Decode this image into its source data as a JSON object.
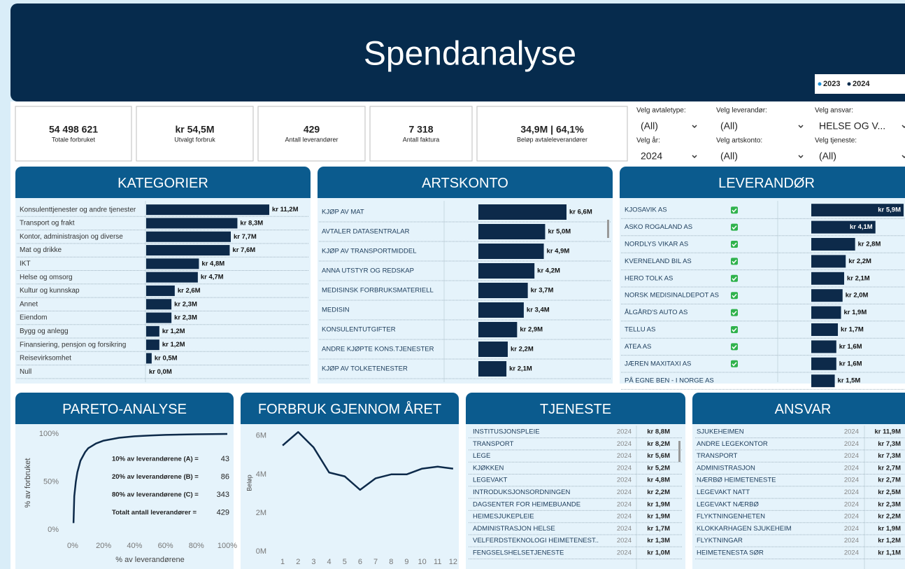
{
  "header": {
    "title": "Spendanalyse",
    "legend": [
      {
        "name": "2023",
        "color": "#1e90d6"
      },
      {
        "name": "2024",
        "color": "#062b4d"
      }
    ]
  },
  "kpis": [
    {
      "value": "54 498 621",
      "label": "Totale forbruket"
    },
    {
      "value": "kr 54,5M",
      "label": "Utvalgt forbruk"
    },
    {
      "value": "429",
      "label": "Antall leverandører"
    },
    {
      "value": "7 318",
      "label": "Antall faktura"
    },
    {
      "value": "34,9M | 64,1%",
      "label": "Beløp avtaleleverandører"
    }
  ],
  "filters": [
    {
      "label": "Velg avtaletype:",
      "value": "(All)"
    },
    {
      "label": "Velg leverandør:",
      "value": "(All)"
    },
    {
      "label": "Velg ansvar:",
      "value": "HELSE OG V..."
    },
    {
      "label": "Velg år:",
      "value": "2024"
    },
    {
      "label": "Velg artskonto:",
      "value": "(All)"
    },
    {
      "label": "Velg tjeneste:",
      "value": "(All)"
    }
  ],
  "chart_data": [
    {
      "type": "bar",
      "title": "KATEGORIER",
      "color": "#0d2a4a",
      "categories": [
        "Konsulenttjenester og andre tjenester",
        "Transport og frakt",
        "Kontor, administrasjon og diverse",
        "Mat og drikke",
        "IKT",
        "Helse og omsorg",
        "Kultur og kunnskap",
        "Annet",
        "Eiendom",
        "Bygg og anlegg",
        "Finansiering, pensjon og forsikring",
        "Reisevirksomhet",
        "Null"
      ],
      "values": [
        11.2,
        8.3,
        7.7,
        7.6,
        4.8,
        4.7,
        2.6,
        2.3,
        2.3,
        1.2,
        1.2,
        0.5,
        0.0
      ],
      "value_labels": [
        "kr 11,2M",
        "kr 8,3M",
        "kr 7,7M",
        "kr 7,6M",
        "kr 4,8M",
        "kr 4,7M",
        "kr 2,6M",
        "kr 2,3M",
        "kr 2,3M",
        "kr 1,2M",
        "kr 1,2M",
        "kr 0,5M",
        "kr 0,0M"
      ]
    },
    {
      "type": "bar",
      "title": "ARTSKONTO",
      "color": "#0d2a4a",
      "categories": [
        "KJØP AV MAT",
        "AVTALER DATASENTRALAR",
        "KJØP AV TRANSPORTMIDDEL",
        "ANNA UTSTYR OG REDSKAP",
        "MEDISINSK FORBRUKSMATERIELL",
        "MEDISIN",
        "KONSULENTUTGIFTER",
        "ANDRE KJØPTE KONS.TJENESTER",
        "KJØP AV TOLKETENESTER"
      ],
      "values": [
        6.6,
        5.0,
        4.9,
        4.2,
        3.7,
        3.4,
        2.9,
        2.2,
        2.1
      ],
      "value_labels": [
        "kr 6,6M",
        "kr 5,0M",
        "kr 4,9M",
        "kr 4,2M",
        "kr 3,7M",
        "kr 3,4M",
        "kr 2,9M",
        "kr 2,2M",
        "kr 2,1M"
      ]
    },
    {
      "type": "bar",
      "title": "LEVERANDØR",
      "color": "#0d2a4a",
      "categories": [
        "KJOSAVIK AS",
        "ASKO ROGALAND AS",
        "NORDLYS VIKAR AS",
        "KVERNELAND BIL AS",
        "HERO TOLK AS",
        "NORSK MEDISINALDEPOT AS",
        "ÅLGÅRD'S AUTO AS",
        "TELLU AS",
        "ATEA AS",
        "JÆREN MAXITAXI AS",
        "PÅ EGNE BEN - I NORGE AS"
      ],
      "agreement": [
        true,
        true,
        true,
        true,
        true,
        true,
        true,
        true,
        true,
        true,
        false
      ],
      "values": [
        5.9,
        4.1,
        2.8,
        2.2,
        2.1,
        2.0,
        1.9,
        1.7,
        1.6,
        1.6,
        1.5
      ],
      "value_labels": [
        "kr 5,9M",
        "kr 4,1M",
        "kr 2,8M",
        "kr 2,2M",
        "kr 2,1M",
        "kr 2,0M",
        "kr 1,9M",
        "kr 1,7M",
        "kr 1,6M",
        "kr 1,6M",
        "kr 1,5M"
      ]
    },
    {
      "type": "line",
      "title": "PARETO-ANALYSE",
      "color": "#0d2a4a",
      "x_label": "% av leverandørene",
      "y_label": "% av forbruket",
      "x": [
        0.5,
        1,
        2,
        3,
        5,
        8,
        10,
        15,
        20,
        30,
        40,
        50,
        60,
        80,
        100
      ],
      "values": [
        7,
        35,
        50,
        60,
        72,
        81,
        85,
        90,
        93,
        96,
        97.5,
        98.3,
        99,
        99.6,
        100
      ],
      "xlim": [
        0,
        100
      ],
      "ylim": [
        0,
        100
      ],
      "xticks": [
        {
          "value": 0,
          "label": "0%"
        },
        {
          "value": 20,
          "label": "20%"
        },
        {
          "value": 40,
          "label": "40%"
        },
        {
          "value": 60,
          "label": "60%"
        },
        {
          "value": 80,
          "label": "80%"
        },
        {
          "value": 100,
          "label": "100%"
        }
      ],
      "yticks": [
        {
          "value": 0,
          "label": "0%"
        },
        {
          "value": 50,
          "label": "50%"
        },
        {
          "value": 100,
          "label": "100%"
        }
      ],
      "annotations": [
        {
          "label": "10% av leverandørene (A) =",
          "value": 43
        },
        {
          "label": "20% av leverandørene (B) =",
          "value": 86
        },
        {
          "label": "80% av leverandørene (C) =",
          "value": 343
        },
        {
          "label": "Totalt antall leverandører =",
          "value": 429
        }
      ]
    },
    {
      "type": "line",
      "title": "FORBRUK GJENNOM ÅRET",
      "color": "#0d2a4a",
      "y_label": "Beløp",
      "x": [
        1,
        2,
        3,
        4,
        5,
        6,
        7,
        8,
        9,
        10,
        11,
        12
      ],
      "values": [
        5.5,
        6.2,
        5.4,
        4.1,
        3.9,
        3.2,
        3.8,
        4.0,
        4.0,
        4.3,
        4.4,
        4.3
      ],
      "xlim": [
        0.5,
        12.5
      ],
      "ylim": [
        0,
        6.5
      ],
      "xticks": [
        1,
        2,
        3,
        4,
        5,
        6,
        7,
        8,
        9,
        10,
        11,
        12
      ],
      "yticks": [
        {
          "value": 0,
          "label": "0M"
        },
        {
          "value": 2,
          "label": "2M"
        },
        {
          "value": 4,
          "label": "4M"
        },
        {
          "value": 6,
          "label": "6M"
        }
      ]
    }
  ],
  "tables": [
    {
      "title": "TJENESTE",
      "rows": [
        [
          "INSTITUSJONSPLEIE",
          "2024",
          "kr 8,8M"
        ],
        [
          "TRANSPORT",
          "2024",
          "kr 8,2M"
        ],
        [
          "LEGE",
          "2024",
          "kr 5,6M"
        ],
        [
          "KJØKKEN",
          "2024",
          "kr 5,2M"
        ],
        [
          "LEGEVAKT",
          "2024",
          "kr 4,8M"
        ],
        [
          "INTRODUKSJONSORDNINGEN",
          "2024",
          "kr 2,2M"
        ],
        [
          "DAGSENTER FOR HEIMEBUANDE",
          "2024",
          "kr 1,9M"
        ],
        [
          "HEIMESJUKEPLEIE",
          "2024",
          "kr 1,9M"
        ],
        [
          "ADMINISTRASJON HELSE",
          "2024",
          "kr 1,7M"
        ],
        [
          "VELFERDSTEKNOLOGI HEIMETENEST..",
          "2024",
          "kr 1,3M"
        ],
        [
          "FENGSELSHELSETJENESTE",
          "2024",
          "kr 1,0M"
        ]
      ]
    },
    {
      "title": "ANSVAR",
      "rows": [
        [
          "SJUKEHEIMEN",
          "2024",
          "kr 11,9M"
        ],
        [
          "ANDRE LEGEKONTOR",
          "2024",
          "kr 7,3M"
        ],
        [
          "TRANSPORT",
          "2024",
          "kr 7,3M"
        ],
        [
          "ADMINISTRASJON",
          "2024",
          "kr 2,7M"
        ],
        [
          "NÆRBØ HEIMETENESTE",
          "2024",
          "kr 2,7M"
        ],
        [
          "LEGEVAKT NATT",
          "2024",
          "kr 2,5M"
        ],
        [
          "LEGEVAKT NÆRBØ",
          "2024",
          "kr 2,3M"
        ],
        [
          "FLYKTNINGENHETEN",
          "2024",
          "kr 2,2M"
        ],
        [
          "KLOKKARHAGEN SJUKEHEIM",
          "2024",
          "kr 1,9M"
        ],
        [
          "FLYKTNINGAR",
          "2024",
          "kr 1,2M"
        ],
        [
          "HEIMETENESTA SØR",
          "2024",
          "kr 1,1M"
        ]
      ]
    }
  ]
}
